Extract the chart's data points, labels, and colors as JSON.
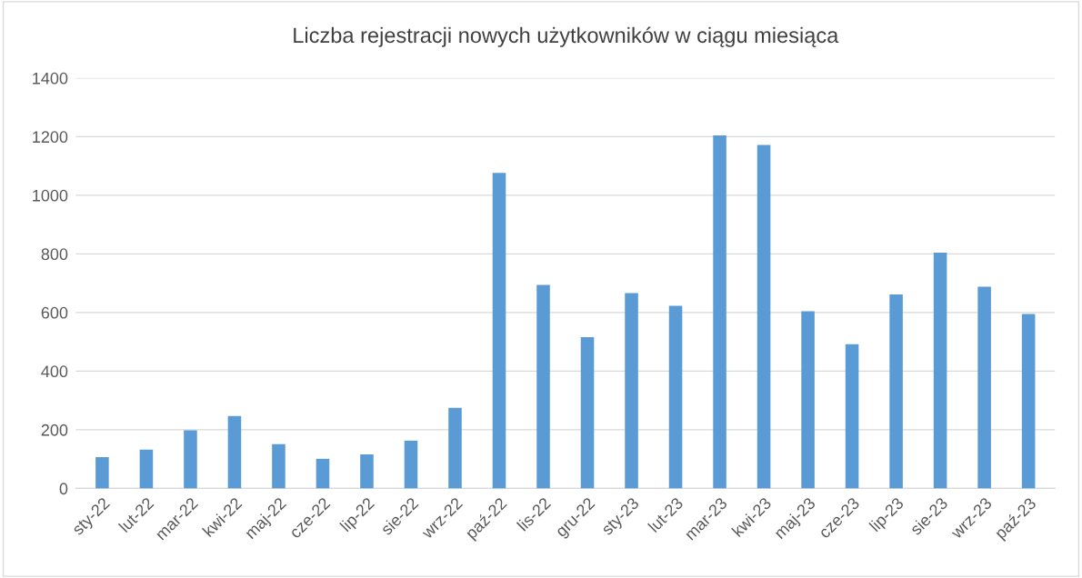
{
  "chart_data": {
    "type": "bar",
    "title": "Liczba rejestracji nowych użytkowników w ciągu miesiąca",
    "categories": [
      "sty-22",
      "lut-22",
      "mar-22",
      "kwi-22",
      "maj-22",
      "cze-22",
      "lip-22",
      "sie-22",
      "wrz-22",
      "paź-22",
      "lis-22",
      "gru-22",
      "sty-23",
      "lut-23",
      "mar-23",
      "kwi-23",
      "maj-23",
      "cze-23",
      "lip-23",
      "sie-23",
      "wrz-23",
      "paź-23"
    ],
    "values": [
      107,
      132,
      198,
      247,
      151,
      101,
      116,
      163,
      275,
      1076,
      694,
      516,
      666,
      623,
      1204,
      1172,
      604,
      492,
      662,
      804,
      688,
      595
    ],
    "color": "#5b9bd5",
    "ylim": [
      0,
      1400
    ],
    "yticks": [
      0,
      200,
      400,
      600,
      800,
      1000,
      1200,
      1400
    ],
    "grid": "y"
  }
}
